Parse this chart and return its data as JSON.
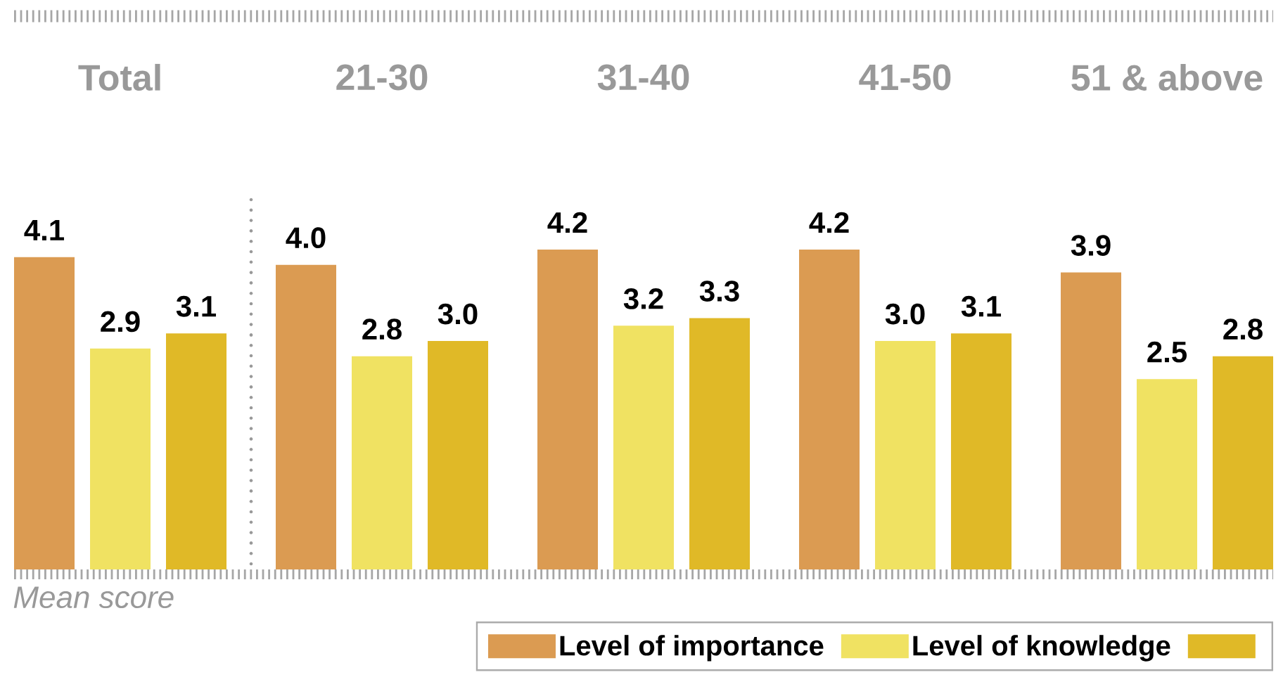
{
  "chart_data": {
    "type": "bar",
    "categories": [
      "Total",
      "21-30",
      "31-40",
      "41-50",
      "51 & above"
    ],
    "annotations": [
      "Mean score"
    ],
    "series": [
      {
        "name": "Level of importance",
        "color": "#db9b52",
        "values": [
          4.1,
          4.0,
          4.2,
          4.2,
          3.9
        ],
        "value_labels": [
          "4.1",
          "4.0",
          "4.2",
          "4.2",
          "3.9"
        ]
      },
      {
        "name": "Level of knowledge",
        "color": "#f0e262",
        "values": [
          2.9,
          2.8,
          3.2,
          3.0,
          2.5
        ],
        "value_labels": [
          "2.9",
          "2.8",
          "3.2",
          "3.0",
          "2.5"
        ]
      },
      {
        "color": "#e0b927",
        "values": [
          3.1,
          3.0,
          3.3,
          3.1,
          2.8
        ],
        "value_labels": [
          "3.1",
          "3.0",
          "3.3",
          "3.1",
          "2.8"
        ]
      }
    ],
    "legend": "bottom right",
    "tick_labels": "x"
  }
}
